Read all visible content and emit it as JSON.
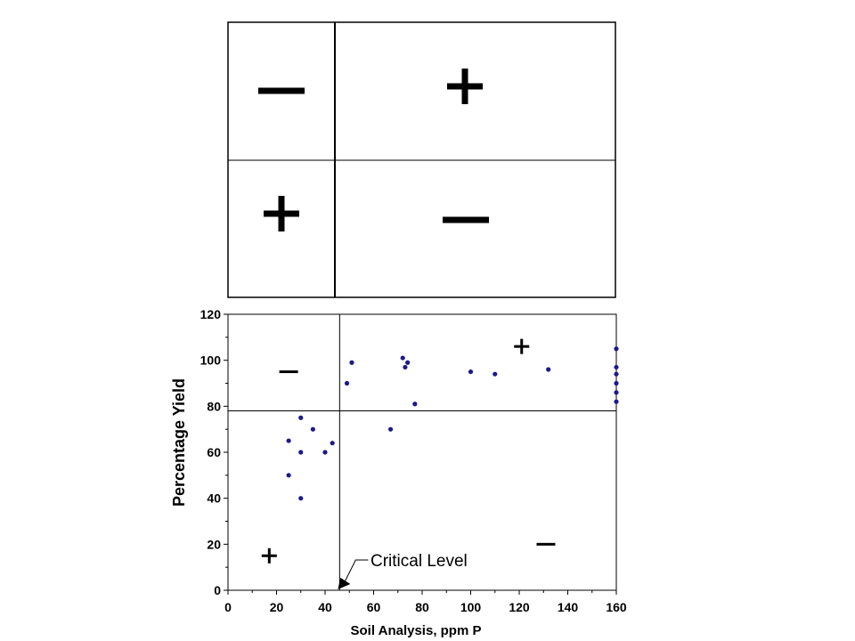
{
  "quadrant_diagram": {
    "symbols": [
      {
        "quadrant": "top-left",
        "sign": "minus"
      },
      {
        "quadrant": "top-right",
        "sign": "plus"
      },
      {
        "quadrant": "bottom-left",
        "sign": "plus"
      },
      {
        "quadrant": "bottom-right",
        "sign": "minus"
      }
    ]
  },
  "chart_data": {
    "type": "scatter",
    "title": "",
    "xlabel": "Soil Analysis, ppm P",
    "ylabel": "Percentage Yield",
    "xlim": [
      0,
      160
    ],
    "ylim": [
      0,
      120
    ],
    "x_ticks": [
      "0",
      "20",
      "40",
      "60",
      "80",
      "100",
      "120",
      "140",
      "160"
    ],
    "y_ticks": [
      "0",
      "20",
      "40",
      "60",
      "80",
      "100",
      "120"
    ],
    "critical_level_x": 46,
    "critical_yield_y": 78,
    "grid": false,
    "point_color": "#1a1a8c",
    "series": [
      {
        "points": [
          [
            25,
            65
          ],
          [
            25,
            50
          ],
          [
            30,
            75
          ],
          [
            30,
            60
          ],
          [
            30,
            40
          ],
          [
            35,
            70
          ],
          [
            40,
            60
          ],
          [
            43,
            64
          ],
          [
            49,
            90
          ],
          [
            51,
            99
          ],
          [
            67,
            70
          ],
          [
            72,
            101
          ],
          [
            73,
            97
          ],
          [
            74,
            99
          ],
          [
            77,
            81
          ],
          [
            100,
            95
          ],
          [
            110,
            94
          ],
          [
            132,
            96
          ],
          [
            160,
            105
          ],
          [
            160,
            97
          ],
          [
            160,
            94
          ],
          [
            160,
            90
          ],
          [
            160,
            86
          ],
          [
            160,
            82
          ]
        ]
      }
    ],
    "annotations": [
      {
        "text": "Critical Level",
        "x": 46,
        "y": 0
      }
    ],
    "quadrant_signs": [
      {
        "sign": "minus",
        "x": 25,
        "y": 95
      },
      {
        "sign": "plus",
        "x": 121,
        "y": 106
      },
      {
        "sign": "plus",
        "x": 17,
        "y": 15
      },
      {
        "sign": "minus",
        "x": 131,
        "y": 20
      }
    ]
  }
}
